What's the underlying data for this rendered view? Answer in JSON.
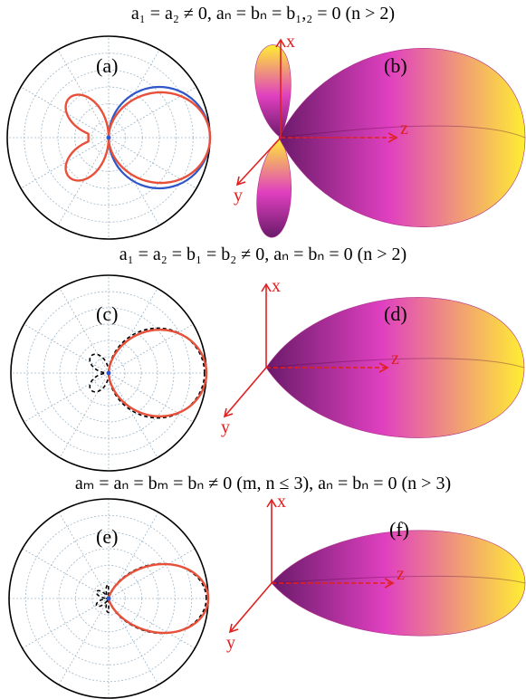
{
  "rows": [
    {
      "title": "a₁ = a₂ ≠ 0, aₙ = bₙ = b₁,₂ = 0 (n > 2)",
      "polar_label": "(a)",
      "pattern_label": "(b)",
      "polar_style": "solid-with-reference",
      "front_lobe": 1.0,
      "back_lobes": true
    },
    {
      "title": "a₁ = a₂ = b₁ = b₂ ≠ 0, aₙ = bₙ = 0 (n > 2)",
      "polar_label": "(c)",
      "pattern_label": "(d)",
      "polar_style": "solid-and-dashed",
      "front_lobe": 1.0,
      "back_lobes": false
    },
    {
      "title": "aₘ = aₙ = bₘ = bₙ ≠ 0 (m, n ≤ 3), aₙ = bₙ = 0 (n > 3)",
      "polar_label": "(e)",
      "pattern_label": "(f)",
      "polar_style": "solid-and-dashed",
      "front_lobe": 1.0,
      "back_lobes": false
    }
  ],
  "axis_labels": {
    "x": "x",
    "y": "y",
    "z": "z"
  },
  "colors": {
    "pattern_red": "#e8503a",
    "reference_blue": "#2f56c8",
    "grid": "#9fb7c9",
    "axis_red": "#e02020",
    "lobe_dark": "#6a1a6a",
    "lobe_mid": "#e040c0",
    "lobe_light": "#ffee33"
  }
}
